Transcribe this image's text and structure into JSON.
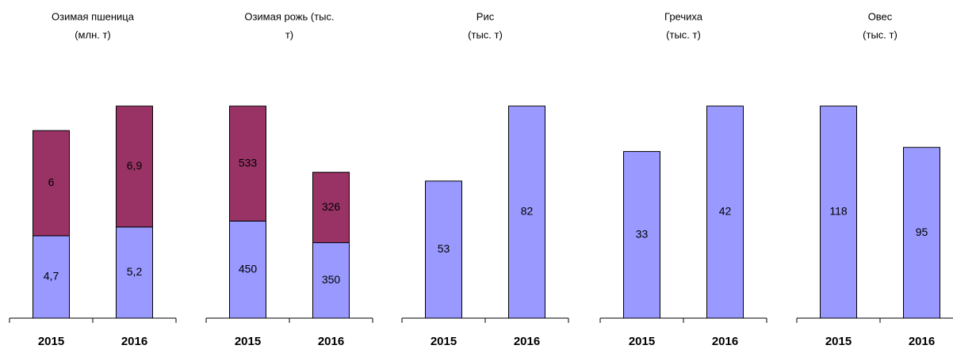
{
  "chart_data": [
    {
      "type": "stacked_bar",
      "title": [
        "Озимая пшеница",
        "(млн. т)"
      ],
      "categories": [
        "2015",
        "2016"
      ],
      "series": [
        {
          "color": "#9999ff",
          "values": [
            4.7,
            5.2
          ],
          "value_labels": [
            "4,7",
            "5,2"
          ]
        },
        {
          "color": "#993366",
          "values": [
            6,
            6.9
          ],
          "value_labels": [
            "6",
            "6,9"
          ]
        }
      ]
    },
    {
      "type": "stacked_bar",
      "title": [
        "Озимая рожь (тыс.",
        "т)"
      ],
      "categories": [
        "2015",
        "2016"
      ],
      "series": [
        {
          "color": "#9999ff",
          "values": [
            450,
            350
          ]
        },
        {
          "color": "#993366",
          "values": [
            533,
            326
          ]
        }
      ]
    },
    {
      "type": "bar",
      "title": [
        "Рис",
        "(тыс. т)"
      ],
      "categories": [
        "2015",
        "2016"
      ],
      "series": [
        {
          "color": "#9999ff",
          "values": [
            53,
            82
          ]
        }
      ]
    },
    {
      "type": "bar",
      "title": [
        "Гречиха",
        "(тыс. т)"
      ],
      "categories": [
        "2015",
        "2016"
      ],
      "series": [
        {
          "color": "#9999ff",
          "values": [
            33,
            42
          ]
        }
      ]
    },
    {
      "type": "bar",
      "title": [
        "Овес",
        "(тыс. т)"
      ],
      "categories": [
        "2015",
        "2016"
      ],
      "series": [
        {
          "color": "#9999ff",
          "values": [
            118,
            95
          ]
        }
      ]
    }
  ]
}
